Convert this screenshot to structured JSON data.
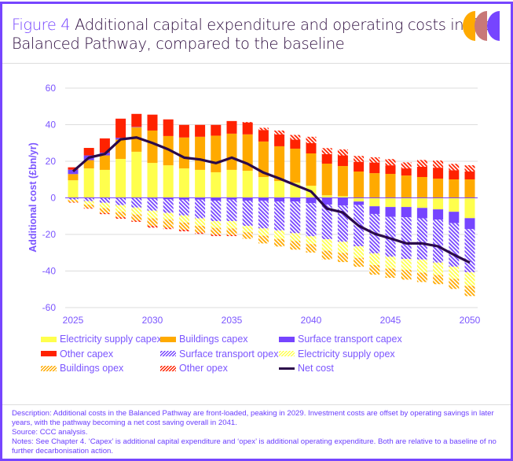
{
  "header": {
    "figure_label": "Figure 4",
    "title": "Additional capital expenditure and operating costs in the Balanced Pathway, compared to the baseline"
  },
  "colors": {
    "accent": "#7645FF",
    "electricity": "#FFFF4D",
    "buildings": "#FFAA00",
    "transport": "#7645FF",
    "other": "#FF2200",
    "net": "#2B0A4A",
    "logo": [
      "#FFAA00",
      "#C87878",
      "#7645FF"
    ]
  },
  "chart_data": {
    "type": "bar",
    "stacked": true,
    "title": "Additional capital expenditure and operating costs in the Balanced Pathway, compared to the baseline",
    "xlabel": "",
    "ylabel": "Additional cost (£bn/yr)",
    "ylim": [
      -60,
      60
    ],
    "yticks": [
      "60",
      "40",
      "20",
      "0",
      "-20",
      "-40",
      "-60"
    ],
    "yticks_values": [
      60,
      40,
      20,
      0,
      -20,
      -40,
      -60
    ],
    "xticks": [
      "2025",
      "2030",
      "2035",
      "2040",
      "2045",
      "2050"
    ],
    "grid": true,
    "legend_position": "bottom",
    "categories": [
      2025,
      2026,
      2027,
      2028,
      2029,
      2030,
      2031,
      2032,
      2033,
      2034,
      2035,
      2036,
      2037,
      2038,
      2039,
      2040,
      2041,
      2042,
      2043,
      2044,
      2045,
      2046,
      2047,
      2048,
      2049,
      2050
    ],
    "series": [
      {
        "name": "Electricity supply capex",
        "color": "#FFFF4D",
        "hatched": false,
        "values": [
          9.6,
          16.1,
          15.3,
          21.3,
          25.2,
          19.1,
          17.8,
          16.1,
          15.3,
          14.0,
          15.3,
          14.8,
          11.4,
          9.2,
          8.3,
          6.6,
          1.4,
          0.9,
          -2.0,
          -4.6,
          -5.0,
          -5.0,
          -5.5,
          -6.3,
          -7.6,
          -11.1
        ]
      },
      {
        "name": "Buildings capex",
        "color": "#FFAA00",
        "hatched": false,
        "values": [
          3.4,
          4.5,
          7.9,
          10.6,
          13.4,
          17.7,
          16.0,
          16.9,
          18.1,
          20.0,
          19.8,
          19.9,
          19.4,
          19.0,
          18.6,
          17.7,
          17.3,
          16.5,
          14.4,
          13.5,
          13.1,
          12.2,
          11.4,
          10.5,
          10.1,
          10.1
        ]
      },
      {
        "name": "Surface transport capex",
        "color": "#7645FF",
        "hatched": false,
        "values": [
          2.4,
          2.6,
          1.5,
          0.9,
          0.2,
          -0.5,
          -0.8,
          -1.0,
          -1.0,
          -1.5,
          -1.0,
          -1.5,
          -1.6,
          -2.0,
          -2.0,
          -2.9,
          -3.7,
          -4.2,
          -1.9,
          -4.2,
          -5.4,
          -5.6,
          -5.7,
          -5.6,
          -6.2,
          -6.0
        ]
      },
      {
        "name": "Other capex",
        "color": "#FF2200",
        "hatched": false,
        "values": [
          1.3,
          4.1,
          7.8,
          10.5,
          7.1,
          8.7,
          9.1,
          6.9,
          6.5,
          5.9,
          6.9,
          6.5,
          6.3,
          6.5,
          4.9,
          5.6,
          5.2,
          5.8,
          5.3,
          5.8,
          4.7,
          3.9,
          5.6,
          6.0,
          5.0,
          4.3
        ]
      },
      {
        "name": "Surface transport opex",
        "color": "#7645FF",
        "hatched": true,
        "values": [
          -1.0,
          -1.8,
          -2.7,
          -4.0,
          -5.3,
          -6.5,
          -7.4,
          -8.6,
          -10.2,
          -11.2,
          -11.7,
          -13.8,
          -15.1,
          -15.8,
          -17.3,
          -18.1,
          -18.9,
          -19.8,
          -22.6,
          -21.6,
          -21.8,
          -22.8,
          -22.5,
          -23.5,
          -23.8,
          -23.6
        ]
      },
      {
        "name": "Electricity supply opex",
        "color": "#FFFF4D",
        "hatched": true,
        "values": [
          -0.3,
          -1.9,
          -2.9,
          -3.6,
          -3.8,
          -4.2,
          -3.7,
          -3.9,
          -4.1,
          -3.7,
          -4.0,
          -3.5,
          -4.0,
          -4.6,
          -4.3,
          -4.3,
          -6.3,
          -6.1,
          -6.3,
          -6.4,
          -6.4,
          -6.0,
          -7.2,
          -6.8,
          -6.7,
          -7.4
        ]
      },
      {
        "name": "Buildings opex",
        "color": "#FFAA00",
        "hatched": true,
        "values": [
          -1.0,
          -1.8,
          -2.7,
          -3.0,
          -3.3,
          -4.1,
          -4.4,
          -3.9,
          -3.7,
          -3.7,
          -3.6,
          -3.6,
          -4.2,
          -4.2,
          -4.7,
          -4.6,
          -4.8,
          -5.0,
          -4.9,
          -5.2,
          -5.1,
          -5.3,
          -5.1,
          -5.0,
          -5.5,
          -5.6
        ]
      },
      {
        "name": "Other opex",
        "color": "#FF2200",
        "hatched": true,
        "values": [
          -0.3,
          -0.4,
          -0.6,
          -0.8,
          -0.7,
          -1.0,
          -0.8,
          -0.9,
          -0.7,
          -0.8,
          -0.6,
          0.3,
          1.2,
          2.1,
          2.6,
          3.5,
          3.3,
          3.3,
          3.2,
          2.9,
          3.4,
          3.3,
          3.7,
          3.9,
          3.5,
          3.4
        ]
      }
    ],
    "line": {
      "name": "Net cost",
      "color": "#2B0A4A",
      "values": [
        14.5,
        22.0,
        24.0,
        32.0,
        33.0,
        30.0,
        26.5,
        22.0,
        21.0,
        19.0,
        22.0,
        18.6,
        13.8,
        10.6,
        7.0,
        3.5,
        -5.9,
        -8.0,
        -15.3,
        -19.6,
        -22.2,
        -24.9,
        -24.9,
        -26.5,
        -31.1,
        -35.4
      ]
    }
  },
  "legend": [
    {
      "label": "Electricity supply capex"
    },
    {
      "label": "Buildings capex"
    },
    {
      "label": "Surface transport capex"
    },
    {
      "label": "Other capex"
    },
    {
      "label": "Surface transport opex"
    },
    {
      "label": "Electricity supply opex"
    },
    {
      "label": "Buildings opex"
    },
    {
      "label": "Other opex"
    },
    {
      "label": "Net cost"
    }
  ],
  "footer": {
    "description": "Description: Additional costs in the Balanced Pathway are front-loaded, peaking in 2029. Investment costs are offset by operating savings in later years, with the pathway becoming a net cost saving overall in 2041.",
    "source": "Source: CCC analysis.",
    "notes": "Notes: See Chapter 4. ‘Capex’ is additional capital expenditure and ‘opex’ is additional operating expenditure. Both are relative to a baseline of no further decarbonisation action."
  }
}
